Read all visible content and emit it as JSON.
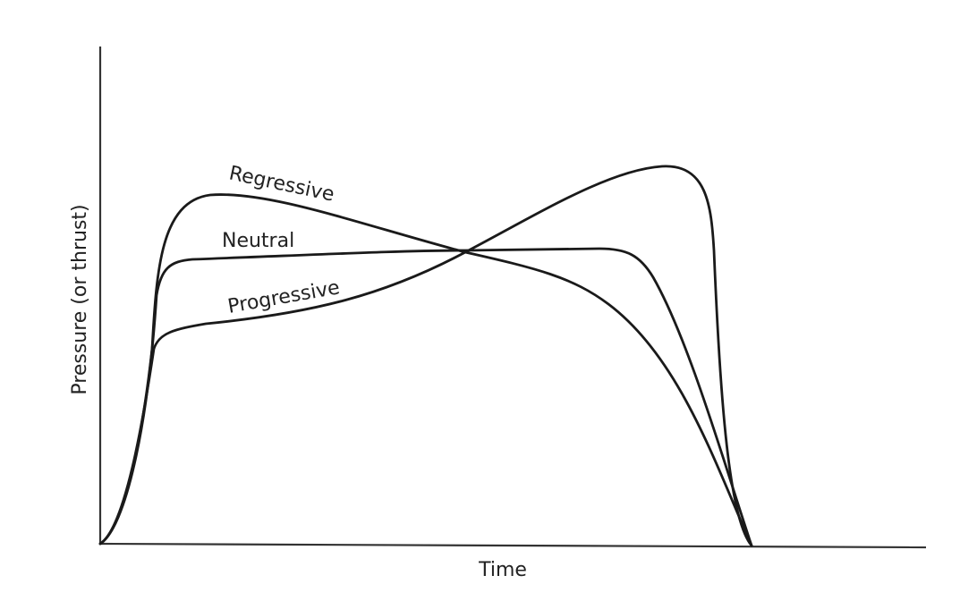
{
  "axes": {
    "x_label": "Time",
    "y_label": "Pressure (or thrust)"
  },
  "curves": [
    {
      "label": "Regressive"
    },
    {
      "label": "Neutral"
    },
    {
      "label": "Progressive"
    }
  ]
}
